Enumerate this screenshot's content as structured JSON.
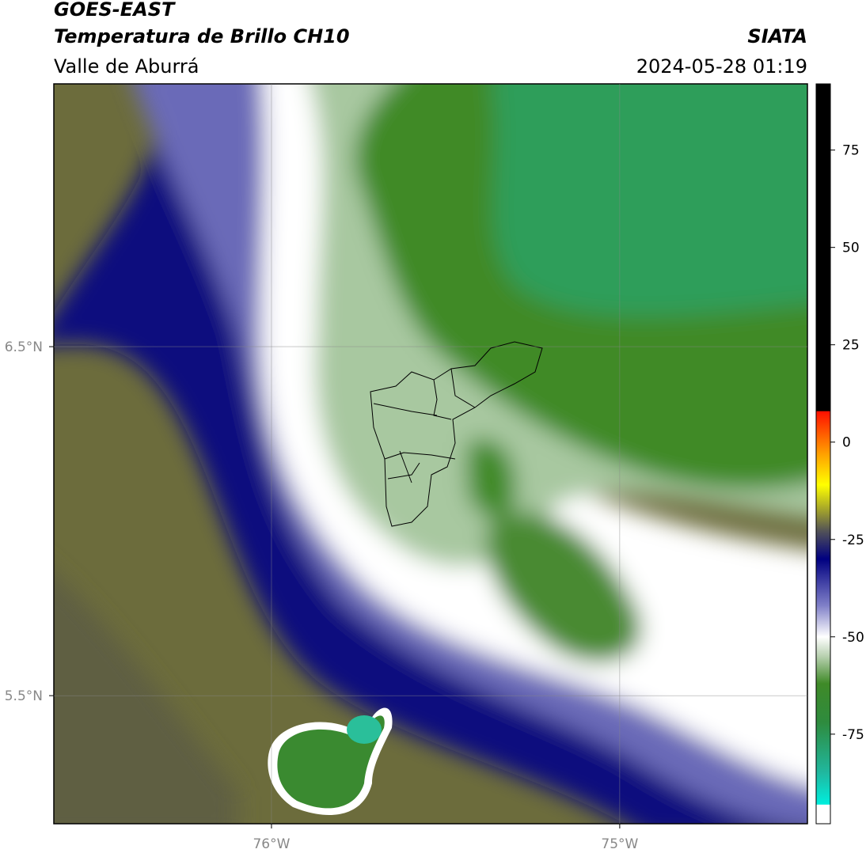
{
  "header": {
    "title": "GOES-EAST",
    "subtitle": "Temperatura de Brillo CH10",
    "region": "Valle de Aburrá",
    "source": "SIATA",
    "datetime": "2024-05-28 01:19"
  },
  "map": {
    "xlim": [
      -76.625,
      -74.461
    ],
    "ylim": [
      5.133,
      7.253
    ],
    "xticks": [
      {
        "value": -76,
        "label": "76°W"
      },
      {
        "value": -75,
        "label": "75°W"
      }
    ],
    "yticks": [
      {
        "value": 6.5,
        "label": "6.5°N"
      },
      {
        "value": 5.5,
        "label": "5.5°N"
      }
    ],
    "grid": true
  },
  "colorbar": {
    "lim": [
      -98,
      92
    ],
    "ticks": [
      75,
      50,
      25,
      0,
      -25,
      -50,
      -75
    ],
    "stops": [
      {
        "value": -98,
        "color": "#ffffff"
      },
      {
        "value": -93.2,
        "color": "#ffffff"
      },
      {
        "value": -93,
        "color": "#00eedd"
      },
      {
        "value": -85,
        "color": "#20b8a0"
      },
      {
        "value": -72,
        "color": "#2e8b3e"
      },
      {
        "value": -62,
        "color": "#3f8a28"
      },
      {
        "value": -55,
        "color": "#b8d0b0"
      },
      {
        "value": -50,
        "color": "#ffffff"
      },
      {
        "value": -42,
        "color": "#8080c8"
      },
      {
        "value": -30,
        "color": "#000080"
      },
      {
        "value": -23,
        "color": "#505058"
      },
      {
        "value": -18,
        "color": "#9a9a30"
      },
      {
        "value": -11,
        "color": "#ffff00"
      },
      {
        "value": -3,
        "color": "#ffa000"
      },
      {
        "value": 7.9,
        "color": "#ff1000"
      },
      {
        "value": 8,
        "color": "#000000"
      },
      {
        "value": 92,
        "color": "#000000"
      }
    ]
  }
}
